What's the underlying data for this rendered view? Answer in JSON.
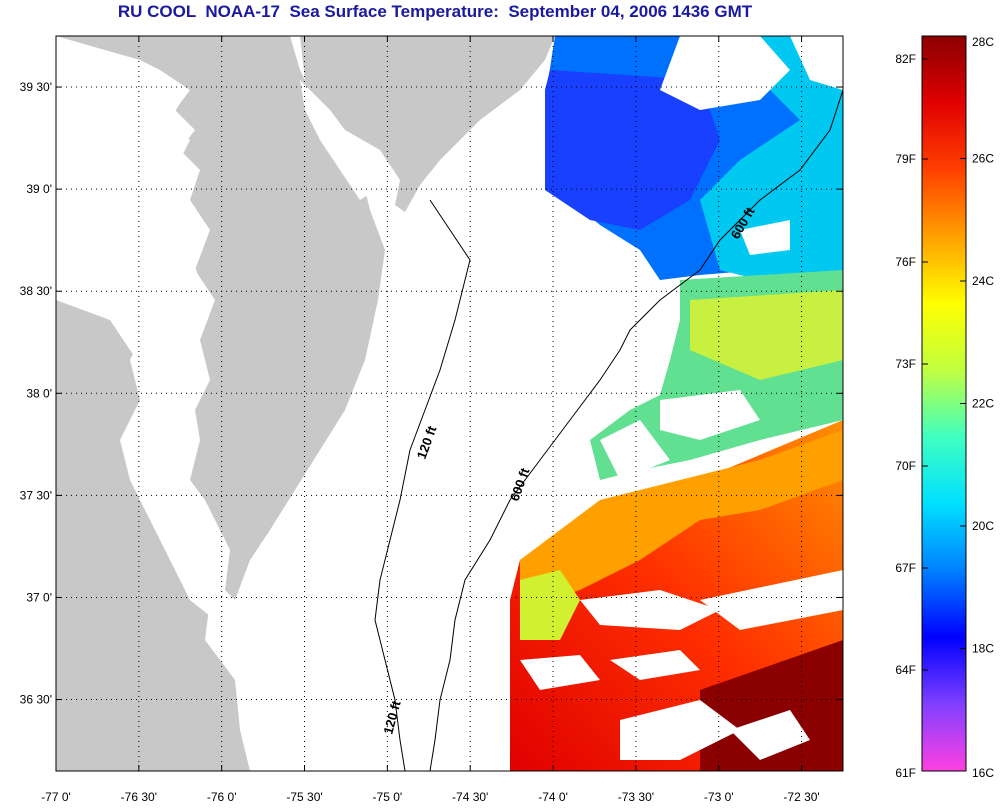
{
  "title": "RU COOL  NOAA-17  Sea Surface Temperature:  September 04, 2006 1436 GMT",
  "map": {
    "lat_ticks": [
      {
        "value": 39.5,
        "label": "39 30'"
      },
      {
        "value": 39.0,
        "label": "39 0'"
      },
      {
        "value": 38.5,
        "label": "38 30'"
      },
      {
        "value": 38.0,
        "label": "38 0'"
      },
      {
        "value": 37.5,
        "label": "37 30'"
      },
      {
        "value": 37.0,
        "label": "37 0'"
      },
      {
        "value": 36.5,
        "label": "36 30'"
      }
    ],
    "lon_ticks": [
      {
        "value": -77.0,
        "label": "-77 0'"
      },
      {
        "value": -76.5,
        "label": "-76 30'"
      },
      {
        "value": -76.0,
        "label": "-76 0'"
      },
      {
        "value": -75.5,
        "label": "-75 30'"
      },
      {
        "value": -75.0,
        "label": "-75 0'"
      },
      {
        "value": -74.5,
        "label": "-74 30'"
      },
      {
        "value": -74.0,
        "label": "-74 0'"
      },
      {
        "value": -73.5,
        "label": "-73 30'"
      },
      {
        "value": -73.0,
        "label": "-73 0'"
      },
      {
        "value": -72.5,
        "label": "-72 30'"
      }
    ],
    "contours": {
      "shelf_120": "120 ft",
      "shelf_600": "600 ft",
      "label_120_upper": "120 ft",
      "label_120_lower": "120 ft",
      "label_600_mid": "600 ft",
      "label_600_upper": "600 ft"
    },
    "land_color": "#c8c8c8",
    "cloud_color": "#ffffff"
  },
  "colorbar": {
    "celsius_labels": [
      "28C",
      "26C",
      "24C",
      "22C",
      "20C",
      "18C",
      "16C"
    ],
    "fahrenheit_labels": [
      "82F",
      "79F",
      "76F",
      "73F",
      "70F",
      "67F",
      "64F",
      "61F"
    ],
    "gradient": [
      "#ff40e0",
      "#8040ff",
      "#0000ff",
      "#0080ff",
      "#00e0ff",
      "#40ffc0",
      "#c0ff40",
      "#ffff00",
      "#ffa000",
      "#ff4000",
      "#e00000",
      "#8b0000"
    ]
  }
}
